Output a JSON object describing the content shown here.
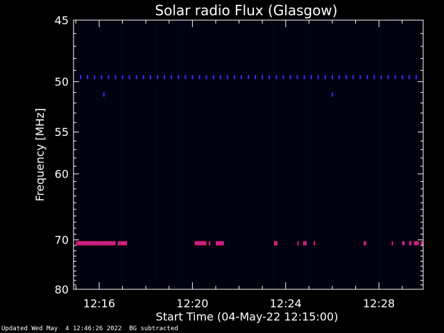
{
  "footer": {
    "updated": "Updated Wed May  4 12:46:26 2022",
    "note": "BG subtracted"
  },
  "chart_data": {
    "type": "heatmap",
    "title": "Solar radio Flux (Glasgow)",
    "xlabel": "Start Time (04-May-22 12:15:00)",
    "ylabel": "Frequency [MHz]",
    "x_ticks": [
      "12:16",
      "12:20",
      "12:24",
      "12:28"
    ],
    "x_tick_minutes": [
      1,
      5,
      9,
      13
    ],
    "xlim_minutes": [
      -0.1,
      14.9
    ],
    "y_ticks": [
      45,
      50,
      55,
      60,
      70,
      80
    ],
    "ylim": [
      45,
      80
    ],
    "y_scale": "reciprocal",
    "background_color": "#00000e",
    "features": [
      {
        "name": "50 MHz periodic spikes",
        "freq_mhz": 49.6,
        "color": "#3a2cff",
        "minutes": [
          0.2,
          0.5,
          0.8,
          1.1,
          1.4,
          1.7,
          2.0,
          2.3,
          2.6,
          2.9,
          3.2,
          3.5,
          3.8,
          4.1,
          4.4,
          4.7,
          5.0,
          5.3,
          5.6,
          5.9,
          6.2,
          6.5,
          6.8,
          7.1,
          7.4,
          7.7,
          8.0,
          8.3,
          8.6,
          8.9,
          9.2,
          9.5,
          9.8,
          10.1,
          10.4,
          10.7,
          11.0,
          11.3,
          11.6,
          11.9,
          12.2,
          12.5,
          12.8,
          13.1,
          13.4,
          13.7,
          14.0,
          14.3,
          14.6
        ]
      },
      {
        "name": "51 MHz spots",
        "freq_mhz": 51.2,
        "color": "#3a2cff",
        "minutes": [
          1.2,
          11.0
        ]
      },
      {
        "name": "70.5 MHz interference",
        "freq_mhz": 70.6,
        "color": "#e0206a",
        "intervals": [
          [
            0.0,
            1.7
          ],
          [
            1.8,
            2.2
          ],
          [
            5.1,
            5.6
          ],
          [
            5.7,
            5.75
          ],
          [
            6.0,
            6.35
          ],
          [
            8.5,
            8.65
          ],
          [
            9.5,
            9.55
          ],
          [
            9.75,
            9.9
          ],
          [
            10.2,
            10.25
          ],
          [
            12.35,
            12.45
          ],
          [
            13.55,
            13.6
          ],
          [
            14.0,
            14.1
          ],
          [
            14.3,
            14.4
          ],
          [
            14.5,
            14.7
          ],
          [
            14.8,
            14.9
          ]
        ]
      }
    ]
  }
}
